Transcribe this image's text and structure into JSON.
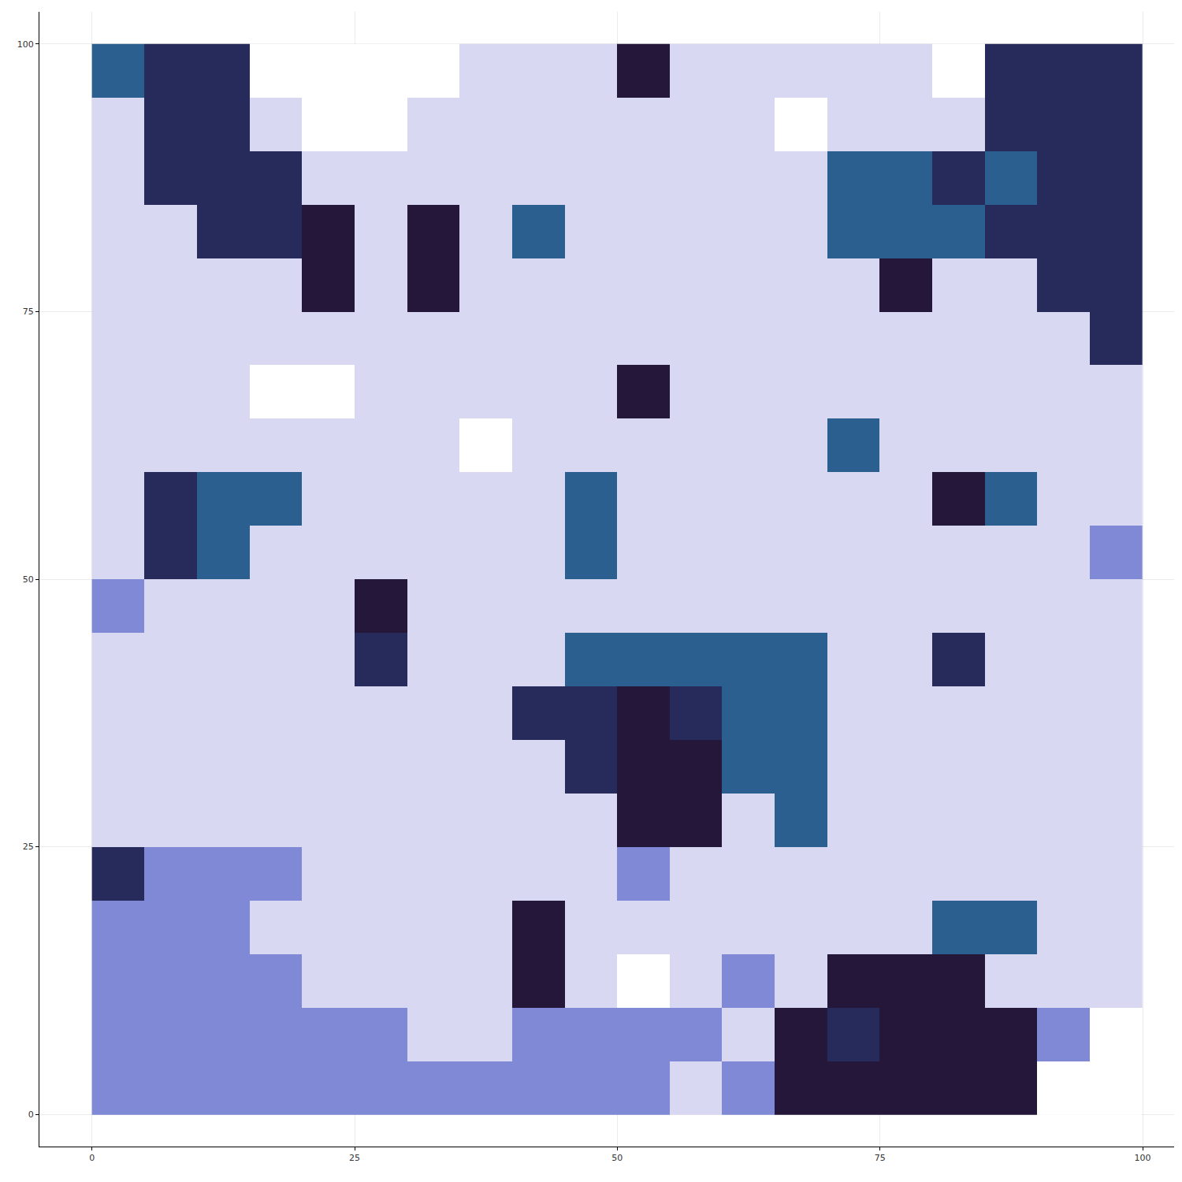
{
  "chart_data": {
    "type": "heatmap",
    "x": [
      2.5,
      7.5,
      12.5,
      17.5,
      22.5,
      27.5,
      32.5,
      37.5,
      42.5,
      47.5,
      52.5,
      57.5,
      62.5,
      67.5,
      72.5,
      77.5,
      82.5,
      87.5,
      92.5,
      97.5
    ],
    "y": [
      2.5,
      7.5,
      12.5,
      17.5,
      22.5,
      27.5,
      32.5,
      37.5,
      42.5,
      47.5,
      52.5,
      57.5,
      62.5,
      67.5,
      72.5,
      77.5,
      82.5,
      87.5,
      92.5,
      97.5
    ],
    "cells": [
      [
        2,
        2,
        2,
        2,
        2,
        2,
        2,
        2,
        2,
        2,
        2,
        1,
        2,
        5,
        5,
        5,
        5,
        5,
        0,
        0
      ],
      [
        2,
        2,
        2,
        2,
        2,
        2,
        1,
        1,
        2,
        2,
        2,
        2,
        1,
        5,
        4,
        5,
        5,
        5,
        2,
        0
      ],
      [
        2,
        2,
        2,
        2,
        1,
        1,
        1,
        1,
        5,
        1,
        0,
        1,
        2,
        1,
        5,
        5,
        5,
        1,
        1,
        1
      ],
      [
        2,
        2,
        2,
        1,
        1,
        1,
        1,
        1,
        5,
        1,
        1,
        1,
        1,
        1,
        1,
        1,
        3,
        3,
        1,
        1
      ],
      [
        4,
        2,
        2,
        2,
        1,
        1,
        1,
        1,
        1,
        1,
        2,
        1,
        1,
        1,
        1,
        1,
        1,
        1,
        1,
        1
      ],
      [
        1,
        1,
        1,
        1,
        1,
        1,
        1,
        1,
        1,
        1,
        5,
        5,
        1,
        3,
        1,
        1,
        1,
        1,
        1,
        1
      ],
      [
        1,
        1,
        1,
        1,
        1,
        1,
        1,
        1,
        1,
        4,
        5,
        5,
        3,
        3,
        1,
        1,
        1,
        1,
        1,
        1
      ],
      [
        1,
        1,
        1,
        1,
        1,
        1,
        1,
        1,
        4,
        4,
        5,
        4,
        3,
        3,
        1,
        1,
        1,
        1,
        1,
        1
      ],
      [
        1,
        1,
        1,
        1,
        1,
        4,
        1,
        1,
        1,
        3,
        3,
        3,
        3,
        3,
        1,
        1,
        4,
        1,
        1,
        1
      ],
      [
        2,
        1,
        1,
        1,
        1,
        5,
        1,
        1,
        1,
        1,
        1,
        1,
        1,
        1,
        1,
        1,
        1,
        1,
        1,
        1
      ],
      [
        1,
        4,
        3,
        1,
        1,
        1,
        1,
        1,
        1,
        3,
        1,
        1,
        1,
        1,
        1,
        1,
        1,
        1,
        1,
        2
      ],
      [
        1,
        4,
        3,
        3,
        1,
        1,
        1,
        1,
        1,
        3,
        1,
        1,
        1,
        1,
        1,
        1,
        5,
        3,
        1,
        1
      ],
      [
        1,
        1,
        1,
        1,
        1,
        1,
        1,
        0,
        1,
        1,
        1,
        1,
        1,
        1,
        3,
        1,
        1,
        1,
        1,
        1
      ],
      [
        1,
        1,
        1,
        0,
        0,
        1,
        1,
        1,
        1,
        1,
        5,
        1,
        1,
        1,
        1,
        1,
        1,
        1,
        1,
        1
      ],
      [
        1,
        1,
        1,
        1,
        1,
        1,
        1,
        1,
        1,
        1,
        1,
        1,
        1,
        1,
        1,
        1,
        1,
        1,
        1,
        4
      ],
      [
        1,
        1,
        1,
        1,
        5,
        1,
        5,
        1,
        1,
        1,
        1,
        1,
        1,
        1,
        1,
        5,
        1,
        1,
        4,
        4
      ],
      [
        1,
        1,
        4,
        4,
        5,
        1,
        5,
        1,
        3,
        1,
        1,
        1,
        1,
        1,
        3,
        3,
        3,
        4,
        4,
        4
      ],
      [
        1,
        4,
        4,
        4,
        1,
        1,
        1,
        1,
        1,
        1,
        1,
        1,
        1,
        1,
        3,
        3,
        4,
        3,
        4,
        4
      ],
      [
        1,
        4,
        4,
        1,
        0,
        0,
        1,
        1,
        1,
        1,
        1,
        1,
        1,
        0,
        1,
        1,
        1,
        4,
        4,
        4
      ],
      [
        3,
        4,
        4,
        0,
        0,
        0,
        0,
        1,
        1,
        1,
        5,
        1,
        1,
        1,
        1,
        1,
        0,
        4,
        4,
        4
      ]
    ],
    "zlim": [
      0,
      5
    ],
    "colors": [
      "#ffffff",
      "#d9d8f2",
      "#7f89d6",
      "#2a5f8f",
      "#262b5c",
      "#24173a"
    ],
    "xlim": [
      -5,
      103
    ],
    "xticks": [
      0,
      25,
      50,
      75,
      100
    ],
    "ylim": [
      -3,
      103
    ],
    "yticks": [
      0,
      25,
      50,
      75,
      100
    ],
    "grid": true
  }
}
